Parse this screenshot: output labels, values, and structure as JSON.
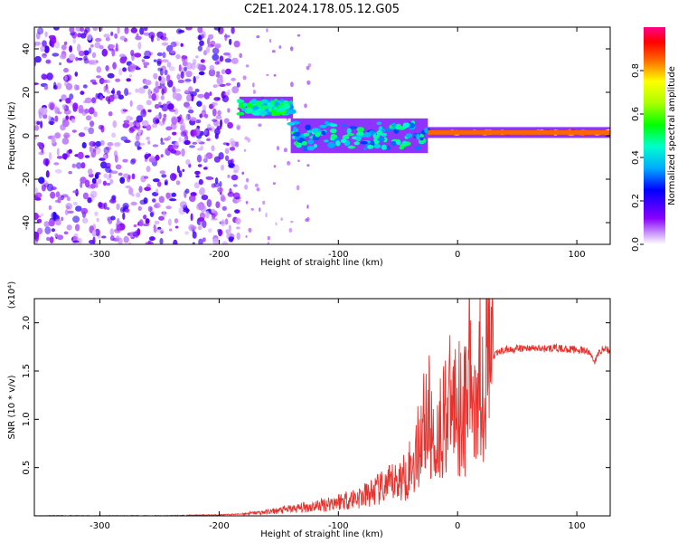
{
  "title": "C2E1.2024.178.05.12.G05",
  "charts": [
    {
      "type": "heatmap",
      "xlabel": "Height of straight line (km)",
      "ylabel": "Frequency (Hz)",
      "xlim": [
        -355,
        128
      ],
      "ylim": [
        -50,
        50
      ],
      "xticks": [
        -300,
        -200,
        -100,
        0,
        100
      ],
      "yticks": [
        -40,
        -20,
        0,
        20,
        40
      ],
      "noise_region_x": [
        -355,
        -183
      ],
      "features": [
        {
          "x": [
            -183,
            -138
          ],
          "y": [
            10,
            16
          ],
          "amplitude": 0.45
        },
        {
          "x": [
            -140,
            -25
          ],
          "y": [
            -6,
            6
          ],
          "amplitude": 0.4
        },
        {
          "x": [
            -25,
            128
          ],
          "y": [
            1,
            2
          ],
          "amplitude": 0.85
        }
      ],
      "colorbar": {
        "label": "Normalized spectral amplitude",
        "range": [
          0,
          1
        ],
        "ticks": [
          0.0,
          0.2,
          0.4,
          0.6,
          0.8
        ]
      }
    },
    {
      "type": "line",
      "xlabel": "Height of straight line (km)",
      "ylabel": "SNR (10 * v/v)",
      "multiplier": "(x10⁴)",
      "xlim": [
        -355,
        128
      ],
      "ylim": [
        0,
        2.25
      ],
      "xticks": [
        -300,
        -200,
        -100,
        0,
        100
      ],
      "yticks": [
        0.5,
        1.0,
        1.5,
        2.0
      ],
      "color": "#e8312c",
      "series": [
        {
          "x": [
            -355,
            -250,
            -200,
            -180,
            -160,
            -140,
            -120,
            -100,
            -80,
            -60,
            -45,
            -35,
            -30,
            -25,
            -20,
            -15,
            -10,
            -5,
            0,
            5,
            10,
            15,
            20,
            25,
            30,
            35,
            40,
            50,
            60,
            70,
            80,
            90,
            100,
            110,
            115,
            120,
            125,
            128
          ],
          "y": [
            0.0,
            0.0,
            0.01,
            0.02,
            0.04,
            0.07,
            0.1,
            0.15,
            0.2,
            0.3,
            0.4,
            0.6,
            0.9,
            1.1,
            0.7,
            0.9,
            1.1,
            1.15,
            1.2,
            1.1,
            1.2,
            1.4,
            1.5,
            1.6,
            1.65,
            1.7,
            1.72,
            1.73,
            1.74,
            1.73,
            1.74,
            1.73,
            1.72,
            1.7,
            1.6,
            1.72,
            1.73,
            1.7
          ]
        }
      ]
    }
  ],
  "chart_data": [
    {
      "type": "heatmap",
      "xlabel": "Height of straight line (km)",
      "ylabel": "Frequency (Hz)",
      "xlim": [
        -355,
        128
      ],
      "ylim": [
        -50,
        50
      ],
      "colorbar_label": "Normalized spectral amplitude",
      "colorbar_range": [
        0,
        1
      ]
    },
    {
      "type": "line",
      "xlabel": "Height of straight line (km)",
      "ylabel": "SNR (10 * v/v)",
      "xlim": [
        -355,
        128
      ],
      "ylim": [
        0,
        2.25
      ],
      "x": [
        -355,
        -250,
        -200,
        -180,
        -160,
        -140,
        -120,
        -100,
        -80,
        -60,
        -45,
        -35,
        -30,
        -25,
        -20,
        -15,
        -10,
        -5,
        0,
        5,
        10,
        15,
        20,
        25,
        30,
        35,
        40,
        50,
        60,
        70,
        80,
        90,
        100,
        110,
        115,
        120,
        125,
        128
      ],
      "y": [
        0.0,
        0.0,
        0.01,
        0.02,
        0.04,
        0.07,
        0.1,
        0.15,
        0.2,
        0.3,
        0.4,
        0.6,
        0.9,
        1.1,
        0.7,
        0.9,
        1.1,
        1.15,
        1.2,
        1.1,
        1.2,
        1.4,
        1.5,
        1.6,
        1.65,
        1.7,
        1.72,
        1.73,
        1.74,
        1.73,
        1.74,
        1.73,
        1.72,
        1.7,
        1.6,
        1.72,
        1.73,
        1.7
      ]
    }
  ]
}
